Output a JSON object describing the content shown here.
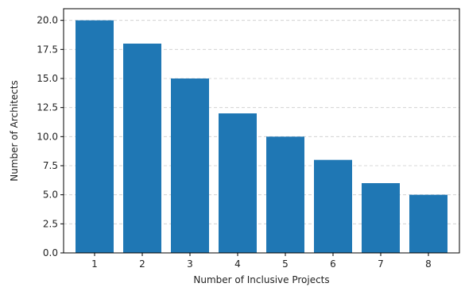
{
  "chart_data": {
    "type": "bar",
    "categories": [
      "1",
      "2",
      "3",
      "4",
      "5",
      "6",
      "7",
      "8"
    ],
    "values": [
      20,
      18,
      15,
      12,
      10,
      8,
      6,
      5
    ],
    "title": "",
    "xlabel": "Number of Inclusive Projects",
    "ylabel": "Number of Architects",
    "ylim": [
      0,
      21
    ],
    "yticks": [
      "0.0",
      "2.5",
      "5.0",
      "7.5",
      "10.0",
      "12.5",
      "15.0",
      "17.5",
      "20.0"
    ],
    "grid": "horizontal dashed",
    "bar_color": "#1f77b4",
    "legend": "none"
  }
}
